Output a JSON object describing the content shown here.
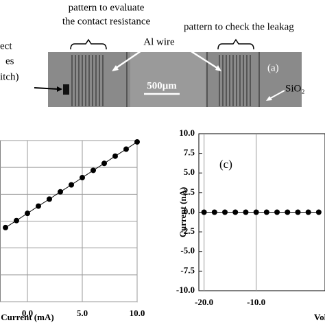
{
  "photo": {
    "labels": [
      "pattern to evaluate",
      "the contact resistance",
      "pattern to check the leakag",
      "ect",
      "es",
      "itch)",
      "Al wire",
      "(a)",
      "500μm",
      "SiO₂"
    ]
  },
  "chart_data": [
    {
      "type": "line",
      "x": [
        -2,
        -1,
        0,
        1,
        2,
        3,
        4,
        5,
        6,
        7,
        8,
        9,
        10
      ],
      "values": [
        2.76,
        3.02,
        3.29,
        3.56,
        3.82,
        4.09,
        4.35,
        4.62,
        4.89,
        5.15,
        5.42,
        5.68,
        5.95
      ],
      "xlim": [
        -2.5,
        10
      ],
      "ylim": [
        0,
        6
      ],
      "xticks": [
        {
          "value": 0,
          "label": "0.0"
        },
        {
          "value": 5,
          "label": "5.0"
        },
        {
          "value": 10,
          "label": "10.0"
        }
      ],
      "xlabel": "Current (mA)",
      "grid": true,
      "color": "#000000"
    },
    {
      "type": "line",
      "annotation": "(c)",
      "x": [
        -20,
        -18,
        -16,
        -14,
        -12,
        -10,
        -8,
        -6,
        -4,
        -2,
        0,
        2
      ],
      "values": [
        0,
        0,
        0,
        0,
        0,
        0,
        0,
        0,
        0,
        0,
        0,
        0
      ],
      "xlim": [
        -21,
        3.2
      ],
      "ylim": [
        -10,
        10
      ],
      "xticks": [
        {
          "value": -20,
          "label": "-20.0"
        },
        {
          "value": -10,
          "label": "-10.0"
        }
      ],
      "yticks": [
        {
          "value": 10,
          "label": "10.0"
        },
        {
          "value": 7.5,
          "label": "7.5"
        },
        {
          "value": 5,
          "label": "5.0"
        },
        {
          "value": 2.5,
          "label": "2.5"
        },
        {
          "value": 0,
          "label": "0.0"
        },
        {
          "value": -2.5,
          "label": "-2.5"
        },
        {
          "value": -5,
          "label": "-5.0"
        },
        {
          "value": -7.5,
          "label": "-7.5"
        },
        {
          "value": -10,
          "label": "-10.0"
        }
      ],
      "xlabel": "Volt",
      "ylabel": "Current (nA)",
      "grid": true,
      "color": "#000000"
    }
  ]
}
